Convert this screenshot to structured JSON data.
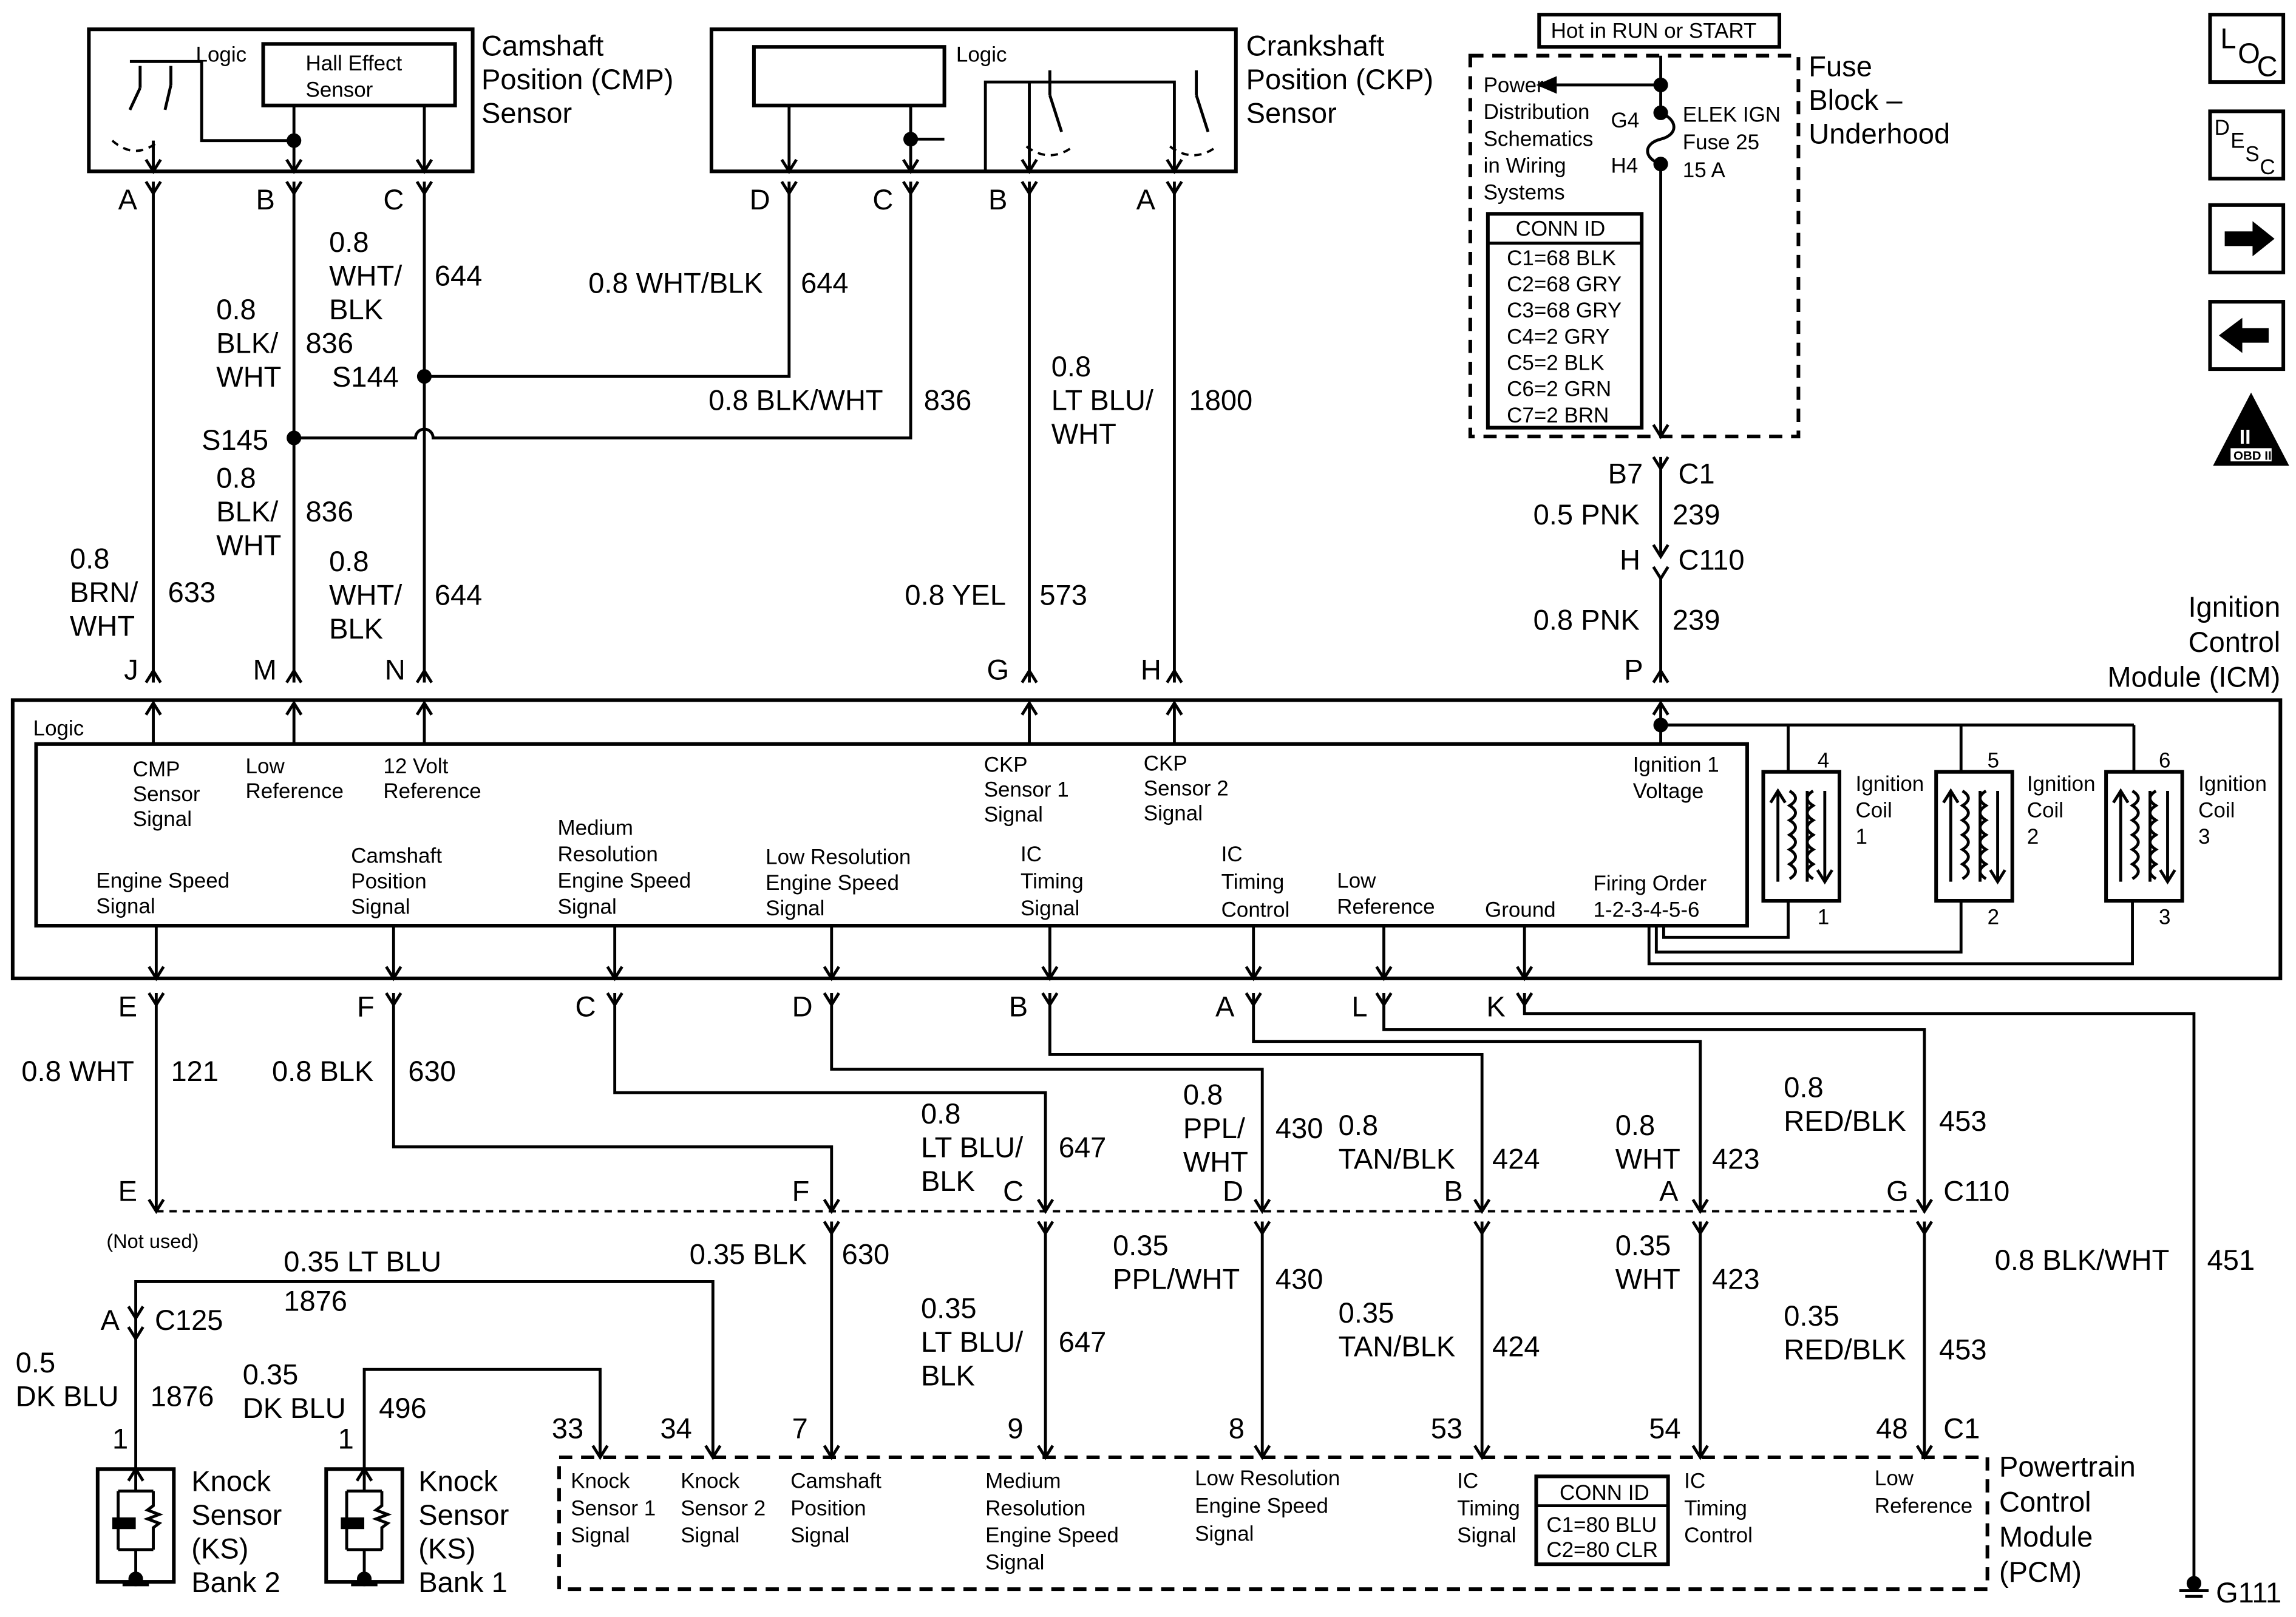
{
  "cmp_sensor": {
    "title": [
      "Camshaft",
      "Position (CMP)",
      "Sensor"
    ],
    "logic": "Logic",
    "hall": [
      "Hall Effect",
      "Sensor"
    ],
    "pins": [
      "A",
      "B",
      "C"
    ]
  },
  "ckp_sensor": {
    "title": [
      "Crankshaft",
      "Position (CKP)",
      "Sensor"
    ],
    "logic": "Logic",
    "pins": [
      "D",
      "C",
      "B",
      "A"
    ]
  },
  "fuse_block": {
    "hot_label": "Hot in RUN or START",
    "title": [
      "Fuse",
      "Block –",
      "Underhood"
    ],
    "power_ref": [
      "Power",
      "Distribution",
      "Schematics",
      "in Wiring",
      "Systems"
    ],
    "g4": "G4",
    "h4": "H4",
    "fuse": [
      "ELEK IGN",
      "Fuse 25",
      "15 A"
    ],
    "conn_id_header": "CONN ID",
    "conn_ids": [
      "C1=68 BLK",
      "C2=68 GRY",
      "C3=68 GRY",
      "C4=2 GRY",
      "C5=2 BLK",
      "C6=2 GRN",
      "C7=2 BRN"
    ],
    "b7": "B7",
    "c1": "C1",
    "h": "H",
    "c110": "C110"
  },
  "icons": {
    "loc": [
      "L",
      "O",
      "C"
    ],
    "desc": [
      "D",
      "E",
      "S",
      "C"
    ],
    "next": "arrow-right-icon",
    "prev": "arrow-left-icon",
    "obd": [
      "II",
      "OBD II"
    ]
  },
  "upper_wires": {
    "wht_blk_644_a": {
      "lines": [
        "0.8",
        "WHT/",
        "BLK"
      ],
      "circuit": "644"
    },
    "blk_wht_836_a": {
      "lines": [
        "0.8",
        "BLK/",
        "WHT"
      ],
      "circuit": "836"
    },
    "s144": "S144",
    "s145": "S145",
    "ckp_d": {
      "label": "0.8 WHT/BLK",
      "circuit": "644"
    },
    "ckp_c": {
      "label": "0.8 BLK/WHT",
      "circuit": "836"
    },
    "blk_wht_836_b": {
      "lines": [
        "0.8",
        "BLK/",
        "WHT"
      ],
      "circuit": "836"
    },
    "wht_blk_644_b": {
      "lines": [
        "0.8",
        "WHT/",
        "BLK"
      ],
      "circuit": "644"
    },
    "brn_wht_633": {
      "lines": [
        "0.8",
        "BRN/",
        "WHT"
      ],
      "circuit": "633"
    },
    "ltblu_wht_1800": {
      "lines": [
        "0.8",
        "LT BLU/",
        "WHT"
      ],
      "circuit": "1800"
    },
    "yel_573": {
      "label": "0.8 YEL",
      "circuit": "573"
    },
    "pnk_239_a": {
      "label": "0.5 PNK",
      "circuit": "239"
    },
    "pnk_239_b": {
      "label": "0.8 PNK",
      "circuit": "239"
    },
    "icm_pins": [
      "J",
      "M",
      "N",
      "G",
      "H",
      "P"
    ]
  },
  "icm": {
    "title": [
      "Ignition",
      "Control",
      "Module (ICM)"
    ],
    "logic": "Logic",
    "top_labels": {
      "cmp": [
        "CMP",
        "Sensor",
        "Signal"
      ],
      "low_ref": [
        "Low",
        "Reference"
      ],
      "v12": [
        "12 Volt",
        "Reference"
      ],
      "ckp1": [
        "CKP",
        "Sensor 1",
        "Signal"
      ],
      "ckp2": [
        "CKP",
        "Sensor 2",
        "Signal"
      ],
      "ign1": [
        "Ignition 1",
        "Voltage"
      ]
    },
    "bottom_labels": {
      "eng_speed": [
        "Engine Speed",
        "Signal"
      ],
      "cam_pos": [
        "Camshaft",
        "Position",
        "Signal"
      ],
      "med_res": [
        "Medium",
        "Resolution",
        "Engine Speed",
        "Signal"
      ],
      "low_res": [
        "Low Resolution",
        "Engine Speed",
        "Signal"
      ],
      "ic_timing": [
        "IC",
        "Timing",
        "Signal"
      ],
      "ic_control": [
        "IC",
        "Timing",
        "Control"
      ],
      "low_ref": [
        "Low",
        "Reference"
      ],
      "ground": [
        "Ground"
      ],
      "firing": [
        "Firing Order",
        "1-2-3-4-5-6"
      ]
    },
    "coils": [
      {
        "label": [
          "Ignition",
          "Coil",
          "1"
        ],
        "top": "4",
        "bottom": "1"
      },
      {
        "label": [
          "Ignition",
          "Coil",
          "2"
        ],
        "top": "5",
        "bottom": "2"
      },
      {
        "label": [
          "Ignition",
          "Coil",
          "3"
        ],
        "top": "6",
        "bottom": "3"
      }
    ],
    "bottom_pins": [
      "E",
      "F",
      "C",
      "D",
      "B",
      "A",
      "L",
      "K"
    ]
  },
  "lower_wires": {
    "wht_121": {
      "label": "0.8 WHT",
      "circuit": "121"
    },
    "blk_630": {
      "label": "0.8 BLK",
      "circuit": "630"
    },
    "ltblu_blk_647": {
      "lines": [
        "0.8",
        "LT BLU/",
        "BLK"
      ],
      "circuit": "647"
    },
    "ppl_wht_430": {
      "lines": [
        "0.8",
        "PPL/",
        "WHT"
      ],
      "circuit": "430"
    },
    "tan_blk_424": {
      "lines": [
        "0.8",
        "TAN/BLK"
      ],
      "circuit": "424"
    },
    "wht_423": {
      "lines": [
        "0.8",
        "WHT"
      ],
      "circuit": "423"
    },
    "red_blk_453": {
      "lines": [
        "0.8",
        "RED/BLK"
      ],
      "circuit": "453"
    },
    "blk_wht_451": {
      "label": "0.8 BLK/WHT",
      "circuit": "451"
    },
    "c110_pins": [
      "E",
      "F",
      "C",
      "D",
      "B",
      "A",
      "G"
    ],
    "c110": "C110",
    "not_used": "(Not used)",
    "blk_630_b": {
      "label": "0.35 BLK",
      "circuit": "630"
    },
    "ltblu_blk_647_b": {
      "lines": [
        "0.35",
        "LT BLU/",
        "BLK"
      ],
      "circuit": "647"
    },
    "ppl_wht_430_b": {
      "lines": [
        "0.35",
        "PPL/WHT"
      ],
      "circuit": "430"
    },
    "tan_blk_424_b": {
      "lines": [
        "0.35",
        "TAN/BLK"
      ],
      "circuit": "424"
    },
    "wht_423_b": {
      "lines": [
        "0.35",
        "WHT"
      ],
      "circuit": "423"
    },
    "red_blk_453_b": {
      "lines": [
        "0.35",
        "RED/BLK"
      ],
      "circuit": "453"
    },
    "ltblu_1876": {
      "label": "0.35 LT BLU",
      "circuit": "1876"
    },
    "c125_pin": "A",
    "c125": "C125",
    "dkblu_1876": {
      "lines": [
        "0.5",
        "DK BLU"
      ],
      "circuit": "1876"
    },
    "dkblu_496": {
      "lines": [
        "0.35",
        "DK BLU"
      ],
      "circuit": "496"
    },
    "ks_pins": [
      "1",
      "1"
    ],
    "g111": "G111"
  },
  "pcm": {
    "title": [
      "Powertrain",
      "Control",
      "Module",
      "(PCM)"
    ],
    "pins": [
      "33",
      "34",
      "7",
      "9",
      "8",
      "53",
      "54",
      "48"
    ],
    "c1": "C1",
    "labels": {
      "ks1": [
        "Knock",
        "Sensor 1",
        "Signal"
      ],
      "ks2": [
        "Knock",
        "Sensor 2",
        "Signal"
      ],
      "cam": [
        "Camshaft",
        "Position",
        "Signal"
      ],
      "med": [
        "Medium",
        "Resolution",
        "Engine Speed",
        "Signal"
      ],
      "low": [
        "Low Resolution",
        "Engine Speed",
        "Signal"
      ],
      "ict": [
        "IC",
        "Timing",
        "Signal"
      ],
      "icc": [
        "IC",
        "Timing",
        "Control"
      ],
      "lowref": [
        "Low",
        "Reference"
      ]
    },
    "conn_id_header": "CONN ID",
    "conn_ids": [
      "C1=80 BLU",
      "C2=80 CLR"
    ]
  },
  "knock_sensors": [
    {
      "label": [
        "Knock",
        "Sensor",
        "(KS)",
        "Bank 2"
      ]
    },
    {
      "label": [
        "Knock",
        "Sensor",
        "(KS)",
        "Bank 1"
      ]
    }
  ]
}
